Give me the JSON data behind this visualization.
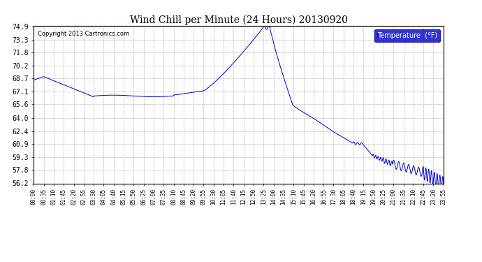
{
  "title": "Wind Chill per Minute (24 Hours) 20130920",
  "copyright": "Copyright 2013 Cartronics.com",
  "legend_label": "Temperature  (°F)",
  "line_color": "#0000CC",
  "background_color": "#ffffff",
  "grid_color": "#aaaaaa",
  "ylim": [
    56.2,
    74.9
  ],
  "yticks": [
    56.2,
    57.8,
    59.3,
    60.9,
    62.4,
    64.0,
    65.6,
    67.1,
    68.7,
    70.2,
    71.8,
    73.3,
    74.9
  ],
  "xtick_labels": [
    "00:00",
    "00:35",
    "01:10",
    "01:45",
    "02:20",
    "02:55",
    "03:30",
    "04:05",
    "04:40",
    "05:15",
    "05:50",
    "06:25",
    "07:00",
    "07:35",
    "08:10",
    "08:45",
    "09:20",
    "09:55",
    "10:30",
    "11:05",
    "11:40",
    "12:15",
    "12:50",
    "13:25",
    "14:00",
    "14:35",
    "15:10",
    "15:45",
    "16:20",
    "16:55",
    "17:30",
    "18:05",
    "18:40",
    "19:15",
    "19:50",
    "20:25",
    "21:00",
    "21:35",
    "22:10",
    "22:45",
    "23:20",
    "23:55"
  ]
}
